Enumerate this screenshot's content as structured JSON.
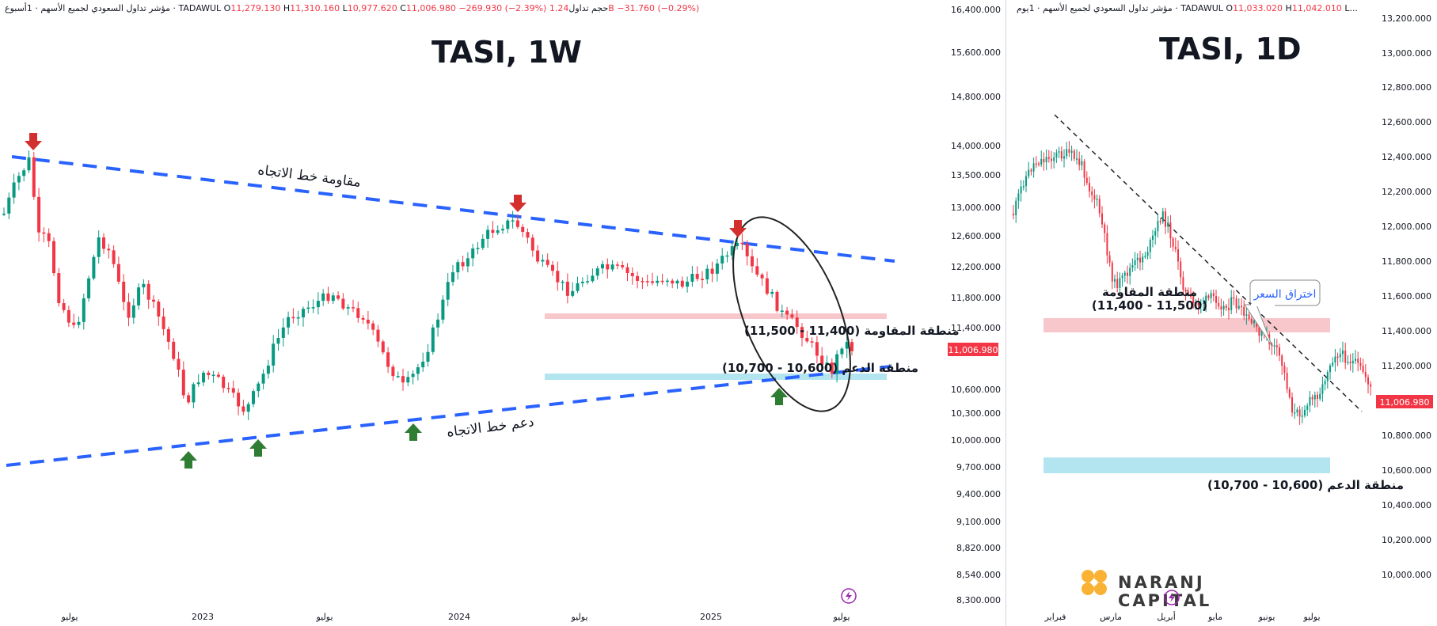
{
  "left_panel": {
    "header": {
      "symbol_desc": "مؤشر تداول السعودي لجميع الأسهم · 1أسبوع · TADAWUL",
      "open_label": "O",
      "open": "11,279.130",
      "high_label": "H",
      "high": "11,310.160",
      "low_label": "L",
      "low": "10,977.620",
      "close_label": "C",
      "close": "11,006.980",
      "change": "−269.930 (−2.39%)",
      "volume_label": "حجم تداول",
      "volume": "1.24B",
      "volume_change": "−31.760 (−0.29%)"
    },
    "title": "TASI, 1W",
    "price_axis": [
      "16,400.000",
      "15,600.000",
      "14,800.000",
      "14,000.000",
      "13,500.000",
      "13,000.000",
      "12,600.000",
      "12,200.000",
      "11,800.000",
      "11,400.000",
      "10,600.000",
      "10,300.000",
      "10,000.000",
      "9,700.000",
      "9,400.000",
      "9,100.000",
      "8,820.000",
      "8,540.000",
      "8,300.000"
    ],
    "last_price": "11,006.980",
    "time_axis": [
      "يوليو",
      "2023",
      "يوليو",
      "2024",
      "يوليو",
      "2025",
      "يوليو"
    ],
    "annotations": {
      "resistance_trendline": "مقاومة خط الاتجاه",
      "support_trendline": "دعم خط الاتجاه",
      "resistance_zone": "منطقة المقاومة (11,400 - 11,500)",
      "support_zone": "منطقة الدعم (10,600 - 10,700)"
    },
    "colors": {
      "up": "#089981",
      "down": "#f23645",
      "trendline": "#2962ff",
      "arrow_down": "#d32f2f",
      "arrow_up": "#2e7d32",
      "resistance_zone": "#f8c7cb",
      "support_zone": "#b3e5f0"
    }
  },
  "right_panel": {
    "header": {
      "symbol_desc": "مؤشر تداول السعودي لجميع الأسهم · 1يوم · TADAWUL",
      "open_label": "O",
      "open": "11,033.020",
      "high_label": "H",
      "high": "11,042.010",
      "tail": "L..."
    },
    "title": "TASI, 1D",
    "price_axis": [
      "13,200.000",
      "13,000.000",
      "12,800.000",
      "12,600.000",
      "12,400.000",
      "12,200.000",
      "12,000.000",
      "11,800.000",
      "11,600.000",
      "11,400.000",
      "11,200.000",
      "10,800.000",
      "10,600.000",
      "10,400.000",
      "10,200.000",
      "10,000.000"
    ],
    "last_price": "11,006.980",
    "time_axis": [
      "فبراير",
      "مارس",
      "أبريل",
      "مايو",
      "يونيو",
      "يوليو"
    ],
    "annotations": {
      "resistance_zone_title": "منطقة المقاومة",
      "resistance_zone_range": "(11,400 - 11,500)",
      "support_zone": "منطقة الدعم (10,600 - 10,700)",
      "breakout": "اختراق السعر"
    },
    "logo": {
      "line1": "NARANJ",
      "line2": "CAPITAL"
    }
  },
  "chart_data": [
    {
      "type": "candlestick",
      "title": "TASI, 1W",
      "resistance_zone": [
        11400,
        11500
      ],
      "support_zone": [
        10600,
        10700
      ],
      "ylim": [
        8300,
        16400
      ]
    },
    {
      "type": "candlestick",
      "title": "TASI, 1D",
      "resistance_zone": [
        11400,
        11500
      ],
      "support_zone": [
        10600,
        10700
      ],
      "ylim": [
        10000,
        13200
      ]
    }
  ]
}
